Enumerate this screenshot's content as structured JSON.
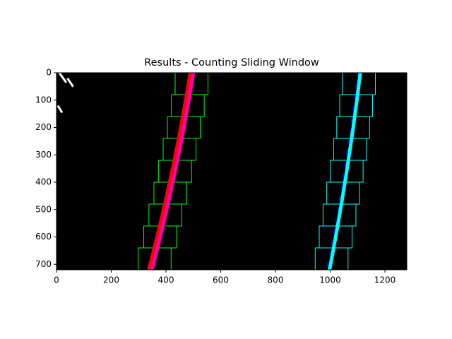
{
  "chart_data": {
    "type": "image",
    "title": "Results - Counting Sliding Window",
    "xlim": [
      0,
      1280
    ],
    "ylim": [
      720,
      0
    ],
    "xticks": [
      0,
      200,
      400,
      600,
      800,
      1000,
      1200
    ],
    "yticks": [
      0,
      100,
      200,
      300,
      400,
      500,
      600,
      700
    ]
  }
}
